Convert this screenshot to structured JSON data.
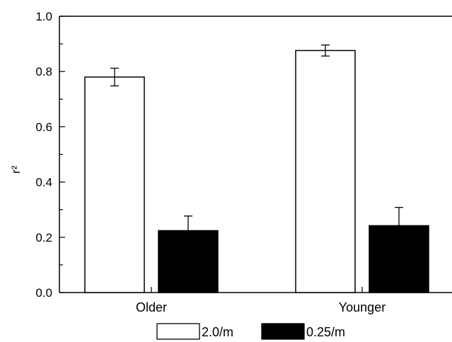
{
  "chart_data": {
    "type": "bar",
    "categories": [
      "Older",
      "Younger"
    ],
    "series": [
      {
        "name": "2.0/m",
        "color": "#ffffff",
        "values": [
          0.78,
          0.876
        ],
        "errors": [
          0.032,
          0.02
        ]
      },
      {
        "name": "0.25/m",
        "color": "#000000",
        "values": [
          0.224,
          0.242
        ],
        "errors": [
          0.053,
          0.066
        ]
      }
    ],
    "ylabel": "r²",
    "ylim": [
      0,
      1.0
    ],
    "yticks": [
      "0.0",
      "0.2",
      "0.4",
      "0.6",
      "0.8",
      "1.0"
    ],
    "ytick_values": [
      0,
      0.2,
      0.4,
      0.6,
      0.8,
      1.0
    ],
    "grid": false,
    "legend_position": "bottom",
    "error_bars": "one-sided up for black bars, two-sided for white bars"
  }
}
